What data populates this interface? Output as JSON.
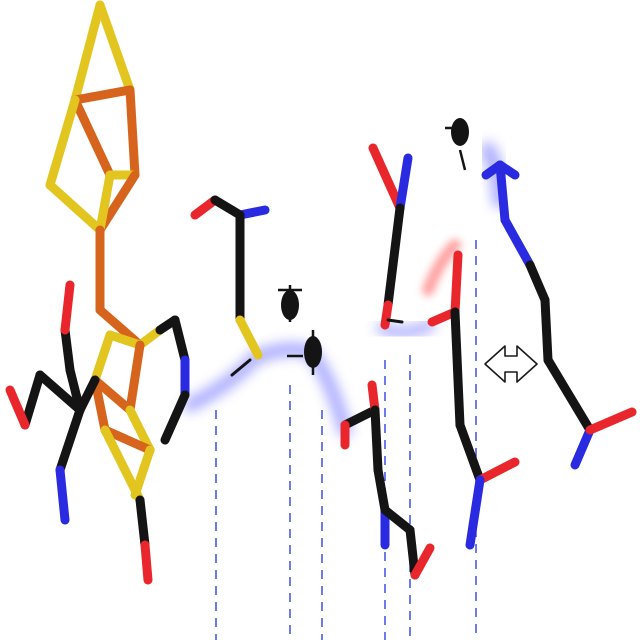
{
  "image": {
    "kind": "molecular stick rendering",
    "background": "#ffffff"
  },
  "colors": {
    "carbon": "#141414",
    "oxygen": "#e8262b",
    "nitrogen": "#2a2ae0",
    "sulfur": "#e2c51f",
    "iron": "#d7641c",
    "glow": "#5a5cff",
    "glow_red": "#ff3030",
    "guide_line": "#1d35d6"
  },
  "annotations": {
    "exchange_arrow": "double-headed-arrow-icon"
  }
}
